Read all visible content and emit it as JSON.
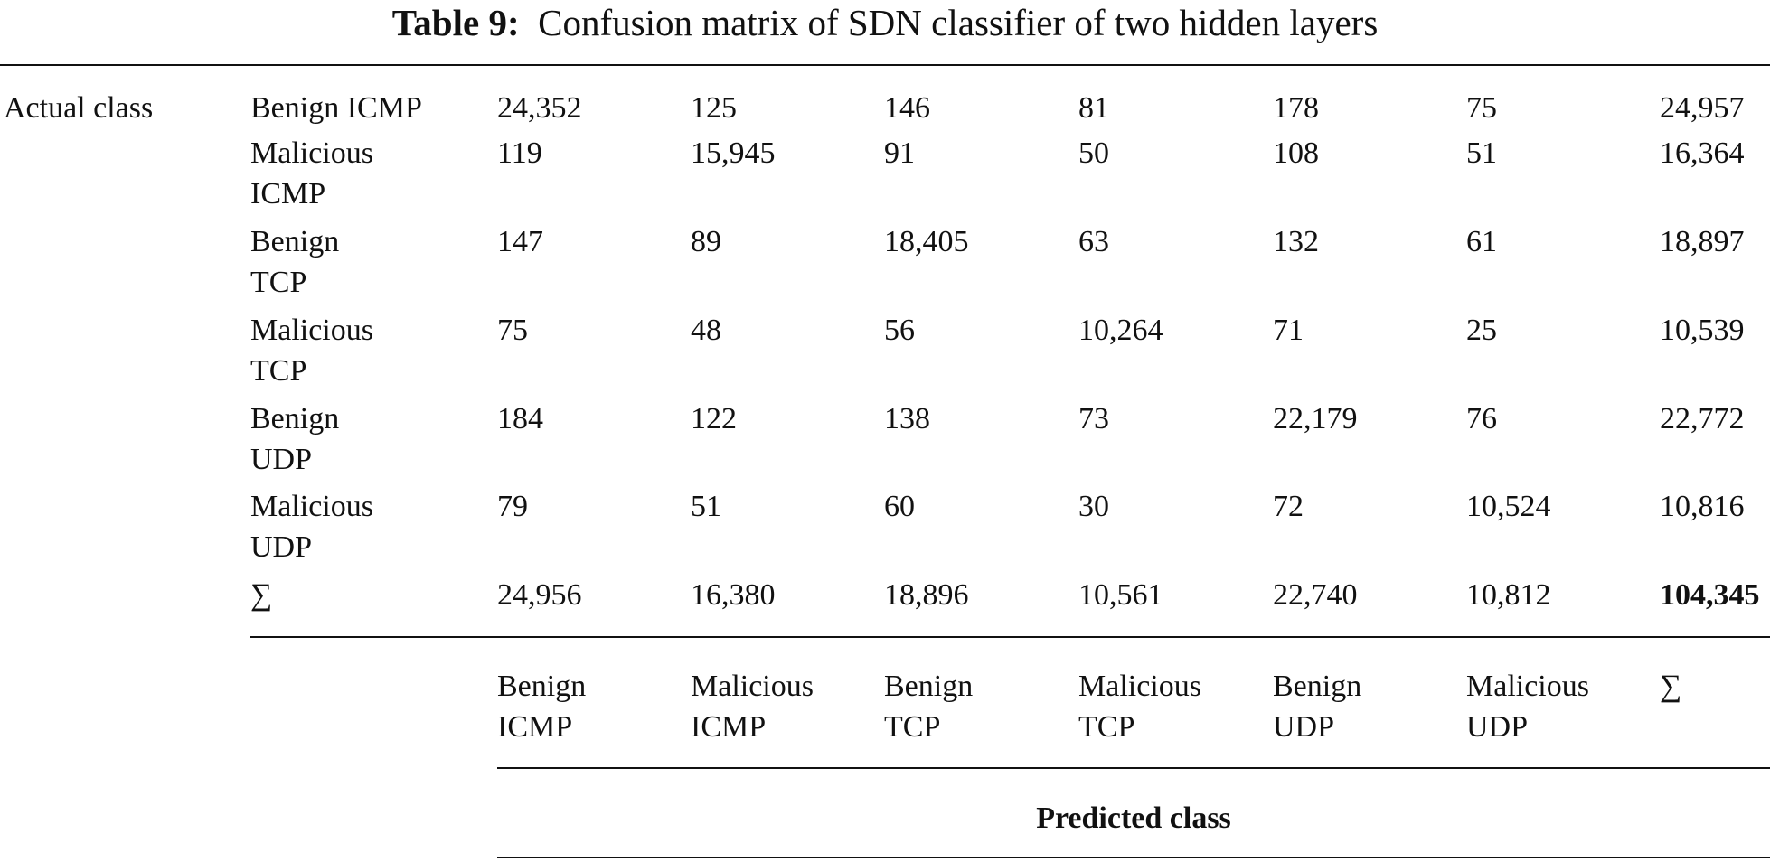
{
  "table": {
    "caption_label": "Table 9:",
    "caption_text": "Confusion matrix of SDN classifier of two hidden layers",
    "side_label": "Actual class",
    "predicted_label": "Predicted class",
    "sum_symbol": "∑",
    "rows": [
      {
        "label": "Benign ICMP",
        "values": [
          "24,352",
          "125",
          "146",
          "81",
          "178",
          "75"
        ],
        "total": "24,957"
      },
      {
        "label": "Malicious\nICMP",
        "values": [
          "119",
          "15,945",
          "91",
          "50",
          "108",
          "51"
        ],
        "total": "16,364"
      },
      {
        "label": "Benign\nTCP",
        "values": [
          "147",
          "89",
          "18,405",
          "63",
          "132",
          "61"
        ],
        "total": "18,897"
      },
      {
        "label": "Malicious\nTCP",
        "values": [
          "75",
          "48",
          "56",
          "10,264",
          "71",
          "25"
        ],
        "total": "10,539"
      },
      {
        "label": "Benign\nUDP",
        "values": [
          "184",
          "122",
          "138",
          "73",
          "22,179",
          "76"
        ],
        "total": "22,772"
      },
      {
        "label": "Malicious\nUDP",
        "values": [
          "79",
          "51",
          "60",
          "30",
          "72",
          "10,524"
        ],
        "total": "10,816"
      }
    ],
    "sum_row": {
      "values": [
        "24,956",
        "16,380",
        "18,896",
        "10,561",
        "22,740",
        "10,812"
      ],
      "total": "104,345"
    },
    "columns": [
      "Benign\nICMP",
      "Malicious\nICMP",
      "Benign\nTCP",
      "Malicious\nTCP",
      "Benign\nUDP",
      "Malicious\nUDP"
    ]
  }
}
